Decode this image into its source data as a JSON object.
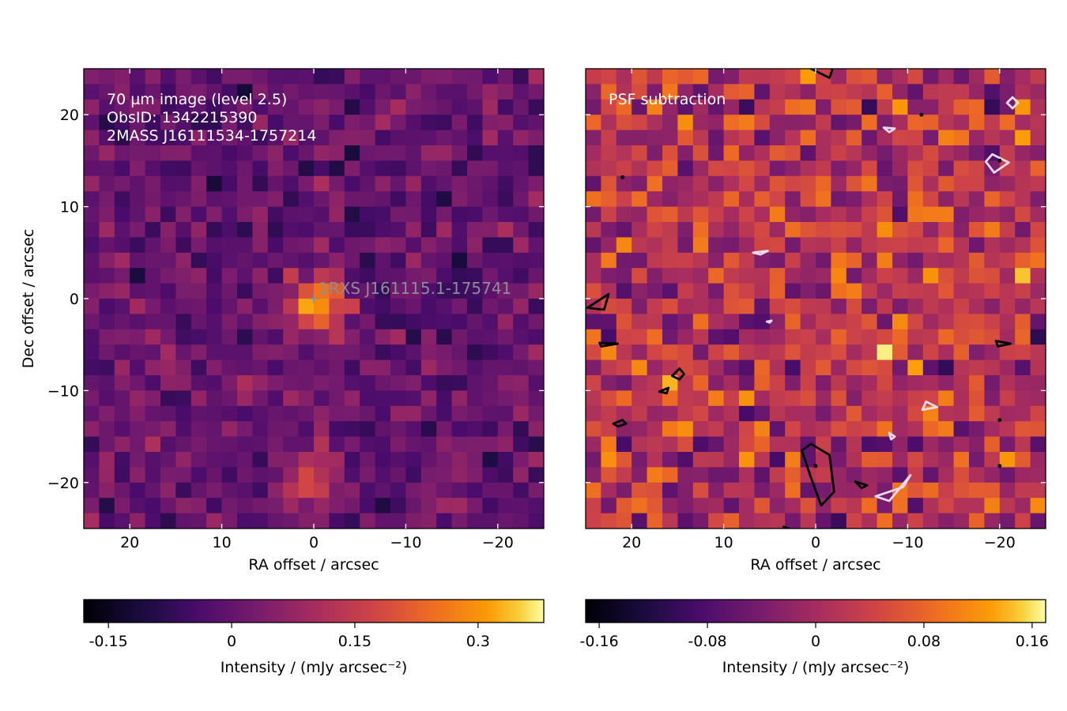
{
  "chart_data": [
    {
      "type": "heatmap",
      "panel": "left",
      "annotations": [
        "70 µm image (level 2.5)",
        "ObsID: 1342215390",
        "2MASS J16111534-1757214"
      ],
      "source_marker": {
        "label": "1RXS J161115.1-175741",
        "ra": 0,
        "dec": 0
      },
      "xlabel": "RA offset / arcsec",
      "ylabel": "Dec offset / arcsec",
      "xlim": [
        25,
        -25
      ],
      "ylim": [
        -25,
        25
      ],
      "xticks": [
        20,
        10,
        0,
        -10,
        -20
      ],
      "xtick_labels": [
        "20",
        "10",
        "0",
        "−10",
        "−20"
      ],
      "yticks": [
        20,
        10,
        0,
        -10,
        -20
      ],
      "ytick_labels": [
        "20",
        "10",
        "0",
        "−10",
        "−20"
      ],
      "colormap": "inferno",
      "colorbar": {
        "label": "Intensity / (mJy arcsec⁻²)",
        "range": [
          -0.18,
          0.38
        ],
        "ticks": [
          -0.15,
          0,
          0.15,
          0.3
        ],
        "tick_labels": [
          "-0.15",
          "0",
          "0.15",
          "0.3"
        ]
      },
      "peak": {
        "ra": -0.5,
        "dec": -0.5,
        "value": 0.32
      },
      "secondary_peak": {
        "ra": 0,
        "dec": -19,
        "value": 0.2
      }
    },
    {
      "type": "heatmap",
      "panel": "right",
      "annotations": [
        "PSF subtraction"
      ],
      "xlabel": "RA offset / arcsec",
      "xlim": [
        25,
        -25
      ],
      "ylim": [
        -25,
        25
      ],
      "xticks": [
        20,
        10,
        0,
        -10,
        -20
      ],
      "xtick_labels": [
        "20",
        "10",
        "0",
        "−10",
        "−20"
      ],
      "colormap": "inferno",
      "contours": {
        "positive_color": "#000000",
        "negative_color": "#e8d8ea"
      },
      "colorbar": {
        "label": "Intensity / (mJy arcsec⁻²)",
        "range": [
          -0.17,
          0.17
        ],
        "ticks": [
          -0.16,
          -0.08,
          0,
          0.08,
          0.16
        ],
        "tick_labels": [
          "-0.16",
          "-0.08",
          "0",
          "0.08",
          "0.16"
        ]
      }
    }
  ]
}
